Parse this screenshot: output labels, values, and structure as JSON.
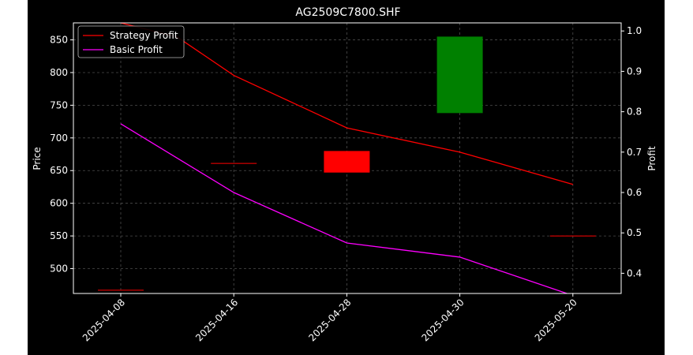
{
  "colors": {
    "background": "#000000",
    "axes": "#ffffff",
    "grid": "#808080",
    "up_candle": "#008000",
    "down_candle": "#ff0000",
    "strategy_line": "#ff0000",
    "basic_line": "#ff00ff"
  },
  "chart_data": {
    "type": "line",
    "title": "AG2509C7800.SHF",
    "ylabel": "Price",
    "y2label": "Profit",
    "categories": [
      "2025-04-08",
      "2025-04-16",
      "2025-04-28",
      "2025-04-30",
      "2025-05-20"
    ],
    "ylim": [
      462,
      876
    ],
    "y2lim": [
      0.35,
      1.02
    ],
    "yticks": [
      500,
      550,
      600,
      650,
      700,
      750,
      800,
      850
    ],
    "y2ticks": [
      0.4,
      0.5,
      0.6,
      0.7,
      0.8,
      0.9,
      1.0
    ],
    "grid": true,
    "legend_position": "top-left",
    "candles": [
      {
        "date": "2025-04-08",
        "open": 467,
        "close": 467
      },
      {
        "date": "2025-04-16",
        "open": 661,
        "close": 661
      },
      {
        "date": "2025-04-28",
        "open": 680,
        "close": 647
      },
      {
        "date": "2025-04-30",
        "open": 738,
        "close": 855
      },
      {
        "date": "2025-05-20",
        "open": 550,
        "close": 550
      }
    ],
    "series": [
      {
        "name": "Strategy Profit",
        "axis": "right",
        "x": [
          0,
          0.5,
          1,
          2,
          3,
          4
        ],
        "values": [
          1.02,
          0.985,
          0.89,
          0.76,
          0.7,
          0.62
        ]
      },
      {
        "name": "Basic Profit",
        "axis": "right",
        "x": [
          0,
          1,
          2,
          3,
          4
        ],
        "values": [
          0.77,
          0.6,
          0.475,
          0.44,
          0.345
        ]
      }
    ]
  }
}
